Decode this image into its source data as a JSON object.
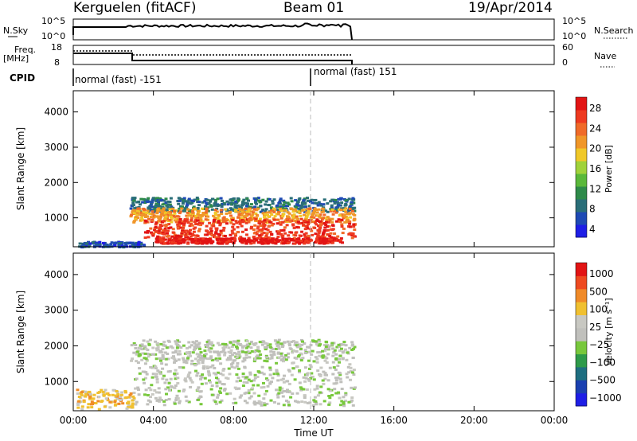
{
  "header": {
    "station": "Kerguelen (fitACF)",
    "beam": "Beam 01",
    "date": "19/Apr/2014"
  },
  "panels": {
    "nsky_label": "N.Sky",
    "nsky_ticks": [
      "10^5",
      "10^0"
    ],
    "nsearch_label": "N.Search",
    "freq_label_1": "Freq.",
    "freq_label_2": "[MHz]",
    "freq_ticks": [
      "18",
      "8"
    ],
    "nave_label": "Nave",
    "nave_ticks": [
      "60",
      "0"
    ],
    "cpid_label": "CPID",
    "cpid_segments": [
      "normal (fast) -151",
      "normal (fast) 151"
    ]
  },
  "colors": {
    "power": [
      "#1e1ee6",
      "#1e4ab4",
      "#2a6e78",
      "#2e8a4a",
      "#5ab83a",
      "#a0d23a",
      "#f0c828",
      "#f09628",
      "#f06a28",
      "#ee3a20",
      "#e21414"
    ],
    "velocity": [
      "#1e1ee6",
      "#1a40b0",
      "#1e6e80",
      "#2e9a4a",
      "#78c83c",
      "#c0c0bc",
      "#c8c8c2",
      "#f0c030",
      "#f08a28",
      "#ee4a20",
      "#e21414"
    ]
  },
  "chart_data": [
    {
      "type": "heatmap",
      "title": "",
      "xlabel": "Time UT",
      "ylabel": "Slant Range [km]",
      "x_ticks": [
        "00:00",
        "04:00",
        "08:00",
        "12:00",
        "16:00",
        "20:00",
        "00:00"
      ],
      "xlim_hours": [
        0,
        24
      ],
      "y_ticks": [
        "4000",
        "3000",
        "2000",
        "1000"
      ],
      "ylim_km": [
        180,
        4600
      ],
      "colorbar_label": "Power [dB]",
      "colorbar_ticks": [
        "28",
        "24",
        "20",
        "16",
        "12",
        "8",
        "4"
      ],
      "colorbar_range": [
        0,
        32
      ],
      "data_end_hour": 14.0,
      "bands": [
        {
          "t0": 2.8,
          "t1": 14.0,
          "r0": 1200,
          "r1": 1600,
          "c": 2
        },
        {
          "t0": 2.8,
          "t1": 14.0,
          "r0": 900,
          "r1": 1300,
          "c": 7
        },
        {
          "t0": 3.5,
          "t1": 14.0,
          "r0": 450,
          "r1": 1000,
          "c": 9
        },
        {
          "t0": 4.0,
          "t1": 13.5,
          "r0": 300,
          "r1": 450,
          "c": 10
        },
        {
          "t0": 0.2,
          "t1": 3.5,
          "r0": 200,
          "r1": 350,
          "c": 1
        }
      ]
    },
    {
      "type": "heatmap",
      "title": "",
      "xlabel": "Time UT",
      "ylabel": "Slant Range [km]",
      "x_ticks": [
        "00:00",
        "04:00",
        "08:00",
        "12:00",
        "16:00",
        "20:00",
        "00:00"
      ],
      "xlim_hours": [
        0,
        24
      ],
      "y_ticks": [
        "4000",
        "3000",
        "2000",
        "1000"
      ],
      "ylim_km": [
        180,
        4600
      ],
      "colorbar_label": "Velocity [m s⁻¹]",
      "colorbar_ticks": [
        "1000",
        "500",
        "100",
        "25",
        "−25",
        "−100",
        "−500",
        "−1000"
      ],
      "colorbar_range": [
        -1200,
        1200
      ],
      "data_end_hour": 14.0,
      "bands": [
        {
          "t0": 3.0,
          "t1": 14.0,
          "r0": 350,
          "r1": 1600,
          "c": 5
        },
        {
          "t0": 0.1,
          "t1": 3.0,
          "r0": 250,
          "r1": 800,
          "c": 7
        },
        {
          "t0": 2.8,
          "t1": 14.0,
          "r0": 1600,
          "r1": 2200,
          "c": 5
        }
      ]
    }
  ]
}
